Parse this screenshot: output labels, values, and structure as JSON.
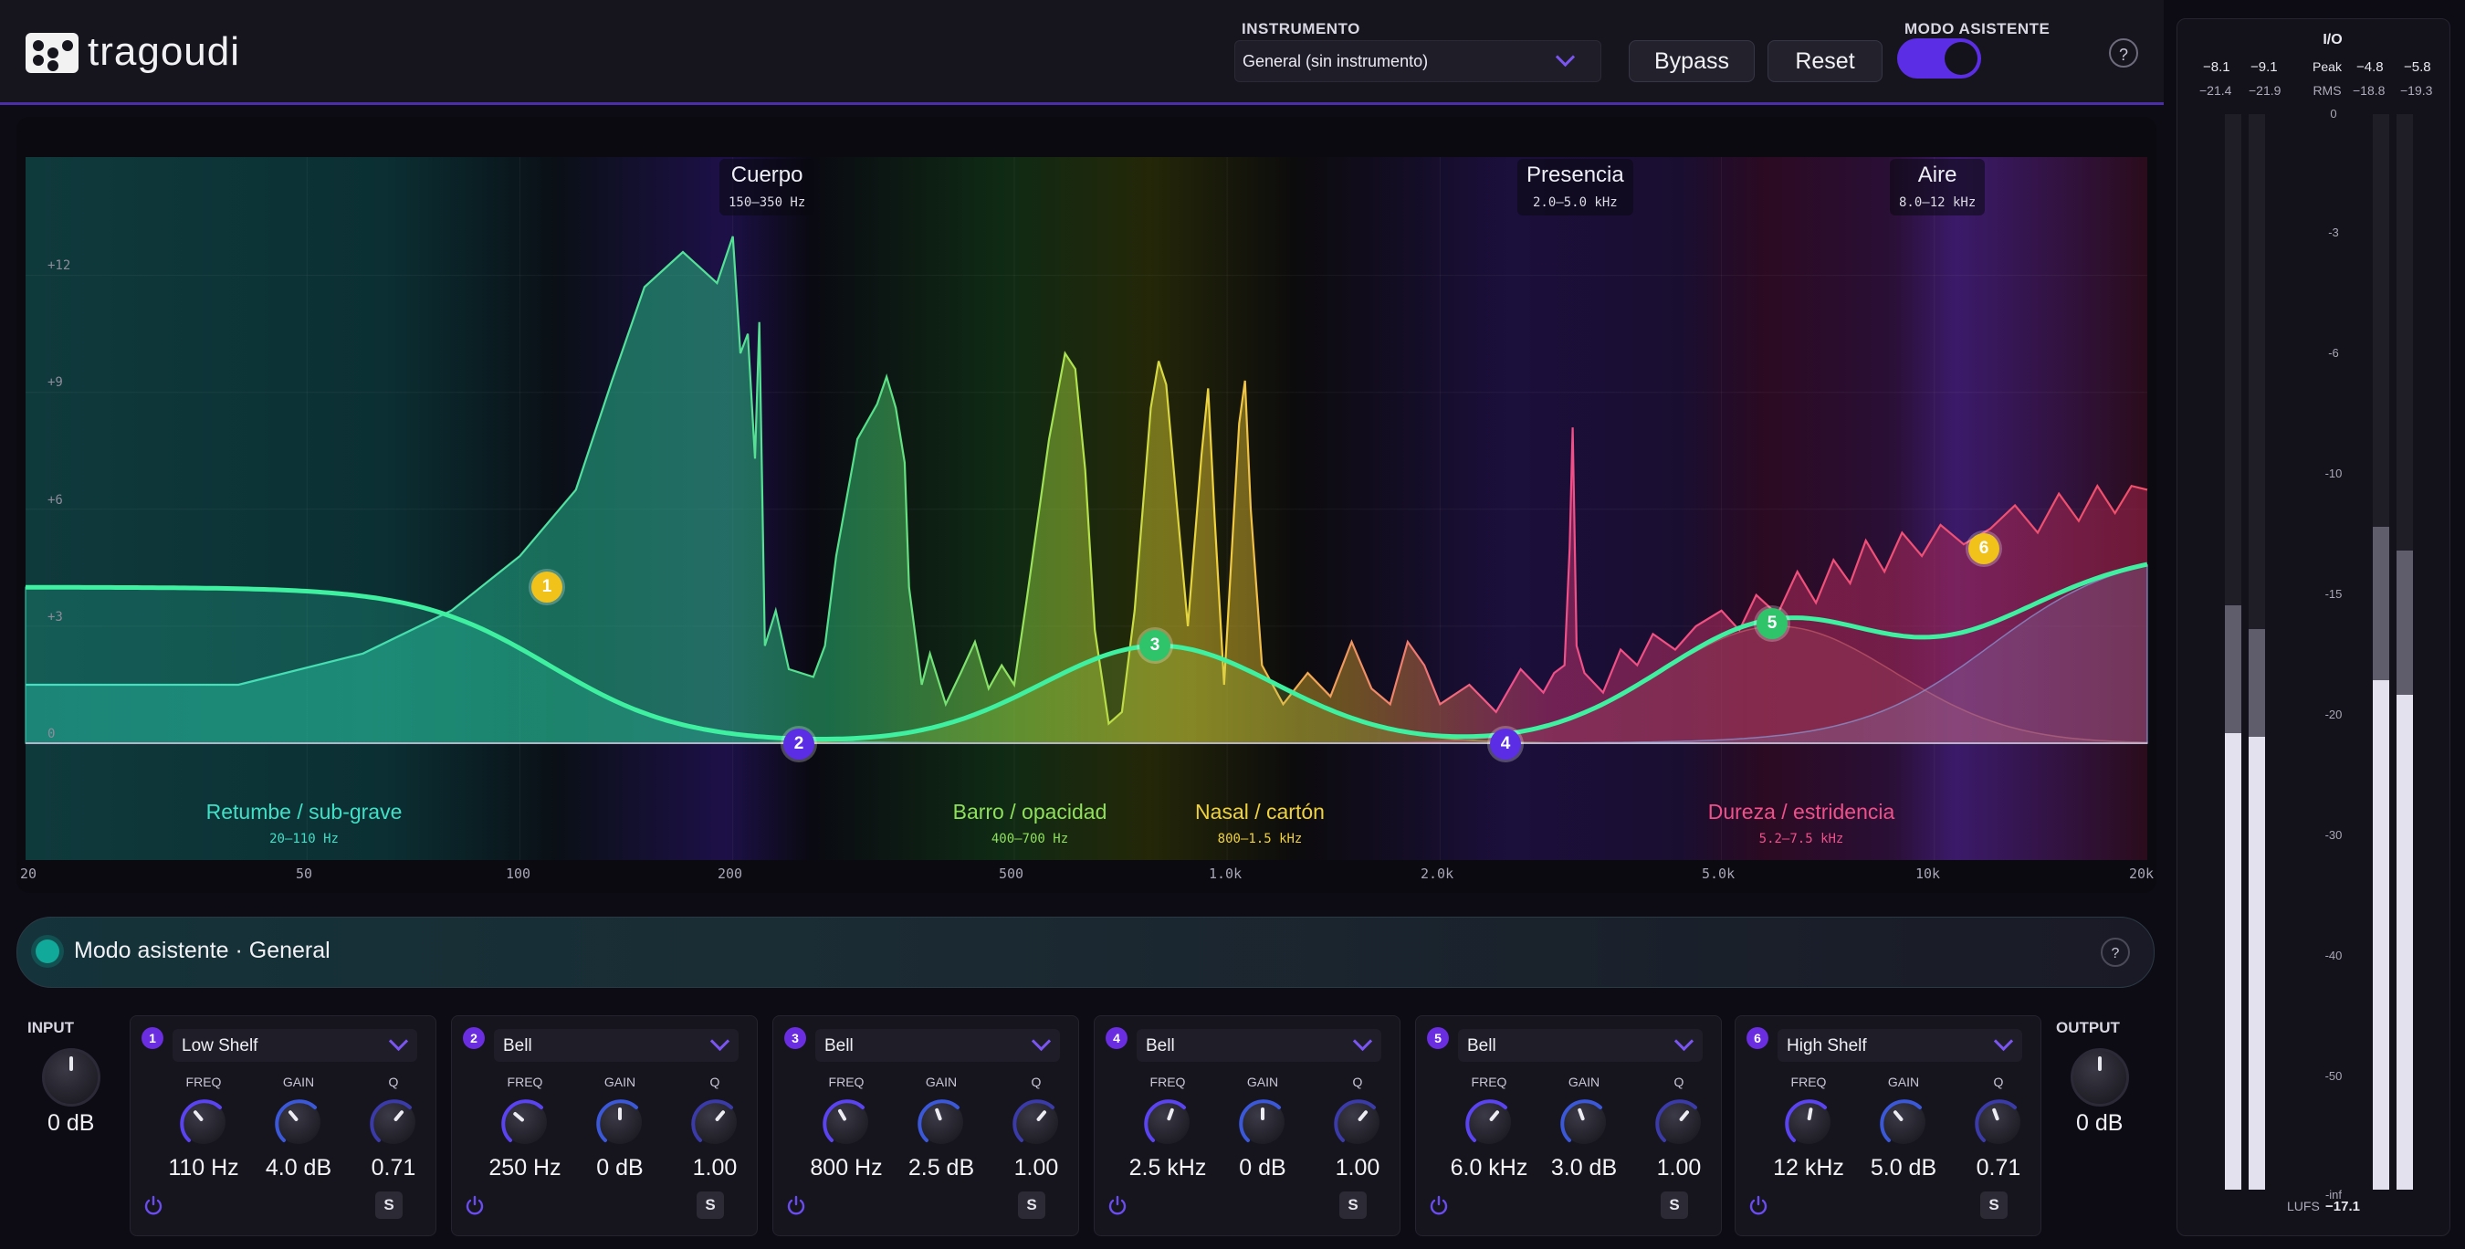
{
  "header": {
    "brand": "tragoudi",
    "instrument_label": "INSTRUMENTO",
    "instrument_value": "General (sin instrumento)",
    "bypass_label": "Bypass",
    "reset_label": "Reset",
    "assist_label": "MODO ASISTENTE",
    "assist_on": true,
    "help_label": "?"
  },
  "graph": {
    "freq_ticks": [
      "20",
      "50",
      "100",
      "200",
      "500",
      "1.0k",
      "2.0k",
      "5.0k",
      "10k",
      "20k"
    ],
    "db_ticks": [
      "+12",
      "+9",
      "+6",
      "+3",
      "0"
    ],
    "top_regions": [
      {
        "name": "Cuerpo",
        "range": "150–350 Hz"
      },
      {
        "name": "Presencia",
        "range": "2.0–5.0 kHz"
      },
      {
        "name": "Aire",
        "range": "8.0–12 kHz"
      }
    ],
    "bottom_regions": [
      {
        "name": "Retumbe / sub-grave",
        "range": "20–110 Hz",
        "color": "#3fe0c6"
      },
      {
        "name": "Barro / opacidad",
        "range": "400–700 Hz",
        "color": "#8fe05a"
      },
      {
        "name": "Nasal / cartón",
        "range": "800–1.5 kHz",
        "color": "#f0d23c"
      },
      {
        "name": "Dureza / estridencia",
        "range": "5.2–7.5 kHz",
        "color": "#f0508a"
      }
    ],
    "handles": [
      {
        "n": "1",
        "color": "#f1c21a"
      },
      {
        "n": "2",
        "color": "#5b2ee6"
      },
      {
        "n": "3",
        "color": "#2fc36a"
      },
      {
        "n": "4",
        "color": "#5b2ee6"
      },
      {
        "n": "5",
        "color": "#2fc36a"
      },
      {
        "n": "6",
        "color": "#f1c21a"
      }
    ]
  },
  "assist_bar": {
    "text": "Modo asistente · General",
    "help": "?"
  },
  "input": {
    "label": "INPUT",
    "value": "0 dB"
  },
  "output": {
    "label": "OUTPUT",
    "value": "0 dB"
  },
  "param_labels": {
    "freq": "FREQ",
    "gain": "GAIN",
    "q": "Q",
    "solo": "S"
  },
  "bands": [
    {
      "n": "1",
      "type": "Low Shelf",
      "freq": "110 Hz",
      "gain": "4.0 dB",
      "q": "0.71"
    },
    {
      "n": "2",
      "type": "Bell",
      "freq": "250 Hz",
      "gain": "0 dB",
      "q": "1.00"
    },
    {
      "n": "3",
      "type": "Bell",
      "freq": "800 Hz",
      "gain": "2.5 dB",
      "q": "1.00"
    },
    {
      "n": "4",
      "type": "Bell",
      "freq": "2.5 kHz",
      "gain": "0 dB",
      "q": "1.00"
    },
    {
      "n": "5",
      "type": "Bell",
      "freq": "6.0 kHz",
      "gain": "3.0 dB",
      "q": "1.00"
    },
    {
      "n": "6",
      "type": "High Shelf",
      "freq": "12 kHz",
      "gain": "5.0 dB",
      "q": "0.71"
    }
  ],
  "meters": {
    "title": "I/O",
    "peak_label": "Peak",
    "rms_label": "RMS",
    "in_peak": [
      "−8.1",
      "−9.1"
    ],
    "in_rms": [
      "−21.4",
      "−21.9"
    ],
    "out_peak": [
      "−4.8",
      "−5.8"
    ],
    "out_rms": [
      "−18.8",
      "−19.3"
    ],
    "scale": [
      "0",
      "-3",
      "-6",
      "-10",
      "-15",
      "-20",
      "-30",
      "-40",
      "-50",
      "-inf"
    ],
    "lufs_label": "LUFS",
    "lufs_value": "−17.1"
  }
}
